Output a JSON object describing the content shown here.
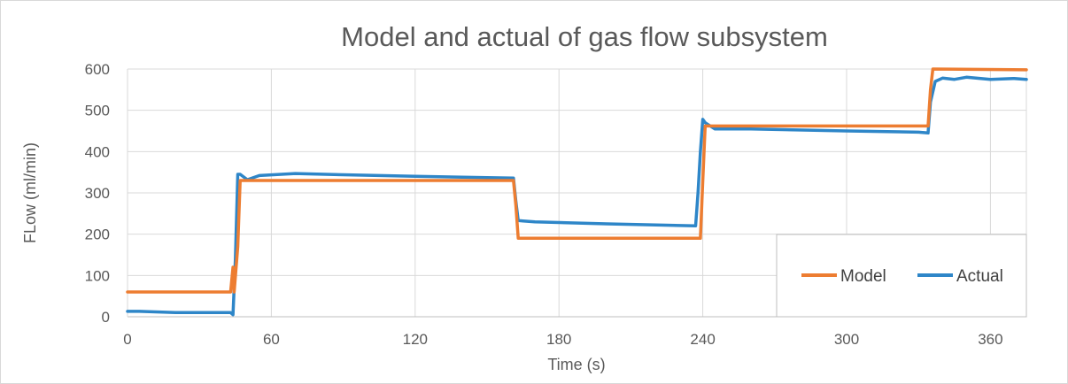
{
  "chart_data": {
    "type": "line",
    "title": "Model and actual of gas flow subsystem",
    "xlabel": "Time (s)",
    "ylabel": "FLow (ml/min)",
    "xlim": [
      0,
      375
    ],
    "ylim": [
      0,
      600
    ],
    "x_ticks": [
      0,
      60,
      120,
      180,
      240,
      300,
      360
    ],
    "y_ticks": [
      0,
      100,
      200,
      300,
      400,
      500,
      600
    ],
    "grid": true,
    "legend_position": "bottom-right",
    "series": [
      {
        "name": "Model",
        "color": "#ED7D31",
        "x": [
          0,
          43,
          44,
          44.5,
          46,
          47,
          161,
          162,
          163,
          239,
          240,
          241,
          334,
          335,
          336,
          375
        ],
        "y": [
          60,
          60,
          120,
          60,
          170,
          330,
          330,
          270,
          190,
          190,
          330,
          462,
          462,
          550,
          600,
          598
        ]
      },
      {
        "name": "Actual",
        "color": "#2E86C8",
        "x": [
          0,
          5,
          20,
          43,
          44,
          45,
          46,
          47,
          50,
          55,
          70,
          90,
          120,
          150,
          161,
          162,
          163,
          165,
          170,
          200,
          237,
          238,
          239,
          240,
          241,
          245,
          260,
          300,
          330,
          334,
          335,
          337,
          340,
          345,
          350,
          360,
          370,
          375
        ],
        "y": [
          13,
          13,
          10,
          10,
          5,
          140,
          345,
          345,
          332,
          342,
          347,
          344,
          340,
          337,
          336,
          280,
          233,
          232,
          230,
          225,
          220,
          300,
          400,
          478,
          470,
          455,
          455,
          450,
          447,
          445,
          520,
          570,
          578,
          575,
          580,
          575,
          577,
          575
        ]
      }
    ]
  }
}
